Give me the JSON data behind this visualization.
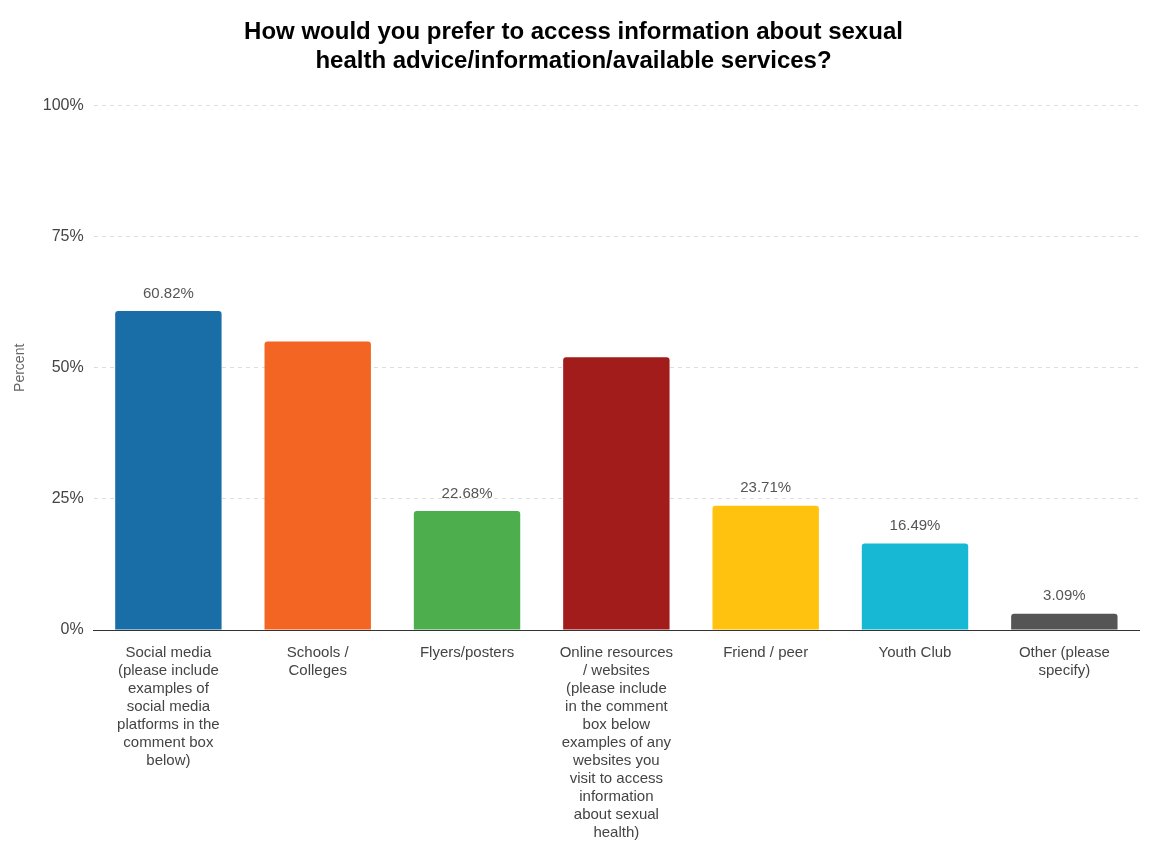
{
  "chart_data": {
    "type": "bar",
    "title": "How would you prefer to access information about sexual health advice/information/available services?",
    "ylabel": "Percent",
    "categories": [
      "Social media (please include examples of social media platforms in the comment box below)",
      "Schools / Colleges",
      "Flyers/posters",
      "Online resources / websites (please include in the comment box below examples of any websites you visit to access information about sexual health)",
      "Friend / peer",
      "Youth Club",
      "Other (please specify)"
    ],
    "values": [
      60.82,
      55,
      22.68,
      52,
      23.71,
      16.49,
      3.09
    ],
    "value_labels": [
      "60.82%",
      null,
      "22.68%",
      null,
      "23.71%",
      "16.49%",
      "3.09%"
    ],
    "colors": [
      "#1a6ea8",
      "#f26522",
      "#4cae4c",
      "#a31c1c",
      "#ffc20e",
      "#17b8d4",
      "#555555"
    ],
    "ylim": [
      0,
      100
    ],
    "yticks": [
      {
        "value": 0,
        "label": "0%"
      },
      {
        "value": 25,
        "label": "25%"
      },
      {
        "value": 50,
        "label": "50%"
      },
      {
        "value": 75,
        "label": "75%"
      },
      {
        "value": 100,
        "label": "100%"
      }
    ],
    "grid": "y",
    "legend": false
  }
}
